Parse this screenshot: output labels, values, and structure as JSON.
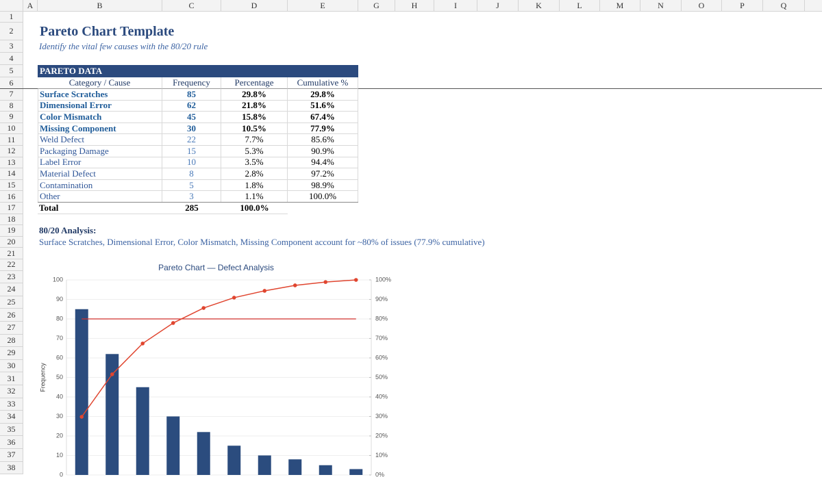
{
  "column_headers": [
    "A",
    "B",
    "C",
    "D",
    "E",
    "G",
    "H",
    "I",
    "J",
    "K",
    "L",
    "M",
    "N",
    "O",
    "P",
    "Q"
  ],
  "row_numbers": [
    1,
    2,
    3,
    4,
    5,
    6,
    7,
    8,
    9,
    10,
    11,
    12,
    13,
    14,
    15,
    16,
    17,
    18,
    19,
    20,
    21,
    22,
    23,
    24,
    25,
    26,
    27,
    28,
    29,
    30,
    31,
    32,
    33,
    34,
    35,
    36,
    37,
    38
  ],
  "header": {
    "title": "Pareto Chart Template",
    "subtitle": "Identify the vital few causes with the 80/20 rule"
  },
  "table": {
    "title": "PARETO DATA",
    "columns": [
      "Category / Cause",
      "Frequency",
      "Percentage",
      "Cumulative %"
    ],
    "rows": [
      {
        "cells": [
          "Surface Scratches",
          "85",
          "29.8%",
          "29.8%"
        ],
        "bold": true
      },
      {
        "cells": [
          "Dimensional Error",
          "62",
          "21.8%",
          "51.6%"
        ],
        "bold": true
      },
      {
        "cells": [
          "Color Mismatch",
          "45",
          "15.8%",
          "67.4%"
        ],
        "bold": true
      },
      {
        "cells": [
          "Missing Component",
          "30",
          "10.5%",
          "77.9%"
        ],
        "bold": true
      },
      {
        "cells": [
          "Weld Defect",
          "22",
          "7.7%",
          "85.6%"
        ],
        "bold": false
      },
      {
        "cells": [
          "Packaging Damage",
          "15",
          "5.3%",
          "90.9%"
        ],
        "bold": false
      },
      {
        "cells": [
          "Label Error",
          "10",
          "3.5%",
          "94.4%"
        ],
        "bold": false
      },
      {
        "cells": [
          "Material Defect",
          "8",
          "2.8%",
          "97.2%"
        ],
        "bold": false
      },
      {
        "cells": [
          "Contamination",
          "5",
          "1.8%",
          "98.9%"
        ],
        "bold": false
      },
      {
        "cells": [
          "Other",
          "3",
          "1.1%",
          "100.0%"
        ],
        "bold": false
      }
    ],
    "total": [
      "Total",
      "285",
      "100.0%"
    ]
  },
  "analysis": {
    "title": "80/20 Analysis:",
    "text": "Surface Scratches, Dimensional Error, Color Mismatch, Missing Component account for ~80% of issues (77.9% cumulative)"
  },
  "chart_data": {
    "type": "pareto",
    "title": "Pareto Chart — Defect Analysis",
    "ylabel": "Frequency",
    "series": [
      {
        "color": "#2b4c7e",
        "values": [
          85,
          62,
          45,
          30,
          22,
          15,
          10,
          8,
          5,
          3
        ]
      },
      {
        "color": "#e0452f",
        "axis": "y2",
        "values": [
          29.8,
          51.6,
          67.4,
          77.9,
          85.6,
          90.9,
          94.4,
          97.2,
          98.9,
          100
        ]
      }
    ],
    "ylim": [
      0,
      100
    ],
    "yticks": [
      0,
      10,
      20,
      30,
      40,
      50,
      60,
      70,
      80,
      90,
      100
    ],
    "y2lim": [
      0,
      100
    ],
    "y2ticks": [
      {
        "value": 0,
        "label": "0%"
      },
      {
        "value": 10,
        "label": "10%"
      },
      {
        "value": 20,
        "label": "20%"
      },
      {
        "value": 30,
        "label": "30%"
      },
      {
        "value": 40,
        "label": "40%"
      },
      {
        "value": 50,
        "label": "50%"
      },
      {
        "value": 60,
        "label": "60%"
      },
      {
        "value": 70,
        "label": "70%"
      },
      {
        "value": 80,
        "label": "80%"
      },
      {
        "value": 90,
        "label": "90%"
      },
      {
        "value": 100,
        "label": "100%"
      }
    ],
    "reference_line": {
      "value": 80,
      "axis": "y2",
      "color": "#d0312d"
    },
    "grid": true
  }
}
